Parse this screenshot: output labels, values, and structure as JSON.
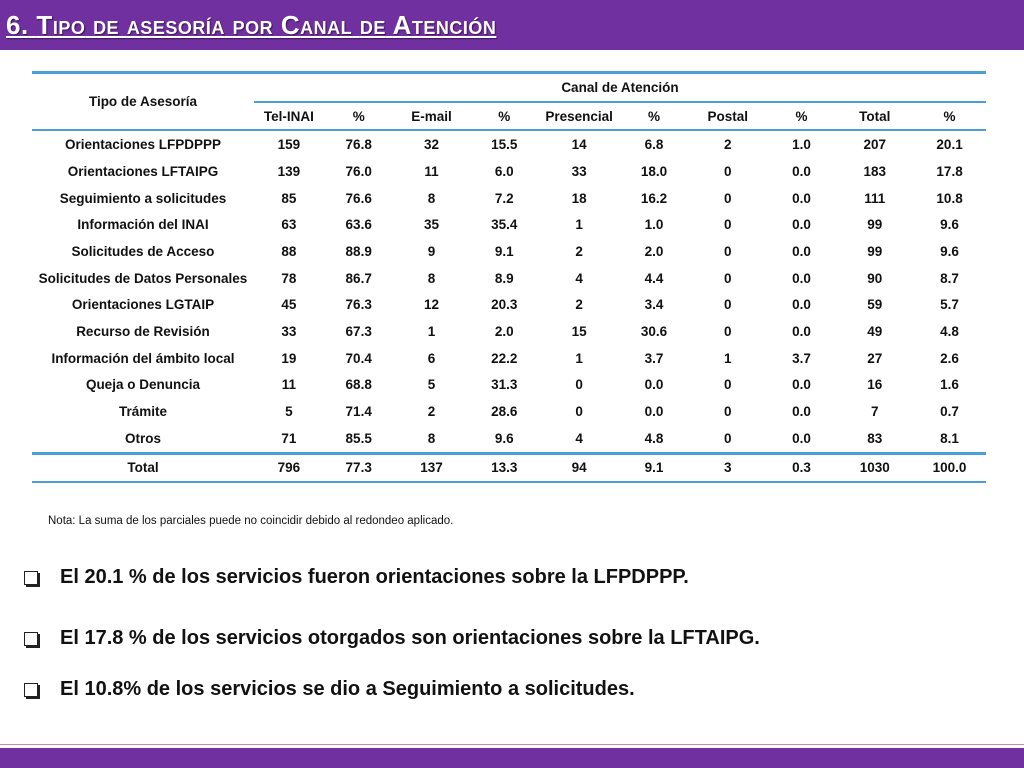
{
  "header": {
    "title_num": "6.",
    "title_words": [
      {
        "cap": "T",
        "rest": "ipo"
      },
      {
        "cap": "",
        "rest": "de"
      },
      {
        "cap": "",
        "rest": "asesoría"
      },
      {
        "cap": "",
        "rest": "por"
      },
      {
        "cap": "C",
        "rest": "anal"
      },
      {
        "cap": "",
        "rest": "de"
      },
      {
        "cap": "A",
        "rest": "tención"
      }
    ]
  },
  "table": {
    "corner_header": "Tipo de Asesoría",
    "group_header": "Canal de Atención",
    "columns": [
      "Tel-INAI",
      "%",
      "E-mail",
      "%",
      "Presencial",
      "%",
      "Postal",
      "%",
      "Total",
      "%"
    ],
    "rows": [
      {
        "label": "Orientaciones LFPDPPP",
        "values": [
          "159",
          "76.8",
          "32",
          "15.5",
          "14",
          "6.8",
          "2",
          "1.0",
          "207",
          "20.1"
        ]
      },
      {
        "label": "Orientaciones LFTAIPG",
        "values": [
          "139",
          "76.0",
          "11",
          "6.0",
          "33",
          "18.0",
          "0",
          "0.0",
          "183",
          "17.8"
        ]
      },
      {
        "label": "Seguimiento a solicitudes",
        "values": [
          "85",
          "76.6",
          "8",
          "7.2",
          "18",
          "16.2",
          "0",
          "0.0",
          "111",
          "10.8"
        ]
      },
      {
        "label": "Información del INAI",
        "values": [
          "63",
          "63.6",
          "35",
          "35.4",
          "1",
          "1.0",
          "0",
          "0.0",
          "99",
          "9.6"
        ]
      },
      {
        "label": "Solicitudes de Acceso",
        "values": [
          "88",
          "88.9",
          "9",
          "9.1",
          "2",
          "2.0",
          "0",
          "0.0",
          "99",
          "9.6"
        ]
      },
      {
        "label": "Solicitudes de Datos Personales",
        "values": [
          "78",
          "86.7",
          "8",
          "8.9",
          "4",
          "4.4",
          "0",
          "0.0",
          "90",
          "8.7"
        ]
      },
      {
        "label": "Orientaciones LGTAIP",
        "values": [
          "45",
          "76.3",
          "12",
          "20.3",
          "2",
          "3.4",
          "0",
          "0.0",
          "59",
          "5.7"
        ]
      },
      {
        "label": "Recurso de Revisión",
        "values": [
          "33",
          "67.3",
          "1",
          "2.0",
          "15",
          "30.6",
          "0",
          "0.0",
          "49",
          "4.8"
        ]
      },
      {
        "label": "Información del ámbito local",
        "values": [
          "19",
          "70.4",
          "6",
          "22.2",
          "1",
          "3.7",
          "1",
          "3.7",
          "27",
          "2.6"
        ]
      },
      {
        "label": "Queja o Denuncia",
        "values": [
          "11",
          "68.8",
          "5",
          "31.3",
          "0",
          "0.0",
          "0",
          "0.0",
          "16",
          "1.6"
        ]
      },
      {
        "label": "Trámite",
        "values": [
          "5",
          "71.4",
          "2",
          "28.6",
          "0",
          "0.0",
          "0",
          "0.0",
          "7",
          "0.7"
        ]
      },
      {
        "label": "Otros",
        "values": [
          "71",
          "85.5",
          "8",
          "9.6",
          "4",
          "4.8",
          "0",
          "0.0",
          "83",
          "8.1"
        ]
      }
    ],
    "total": {
      "label": "Total",
      "values": [
        "796",
        "77.3",
        "137",
        "13.3",
        "94",
        "9.1",
        "3",
        "0.3",
        "1030",
        "100.0"
      ]
    }
  },
  "note": "Nota: La suma de los parciales puede no coincidir debido al redondeo aplicado.",
  "bullets": [
    "El 20.1 % de los servicios fueron orientaciones sobre la LFPDPPP.",
    "El 17.8 % de los servicios otorgados son orientaciones sobre la LFTAIPG.",
    "El 10.8% de los servicios se dio a Seguimiento a solicitudes."
  ],
  "colors": {
    "accent": "#7030a0",
    "table_rule": "#4a9fd6"
  }
}
